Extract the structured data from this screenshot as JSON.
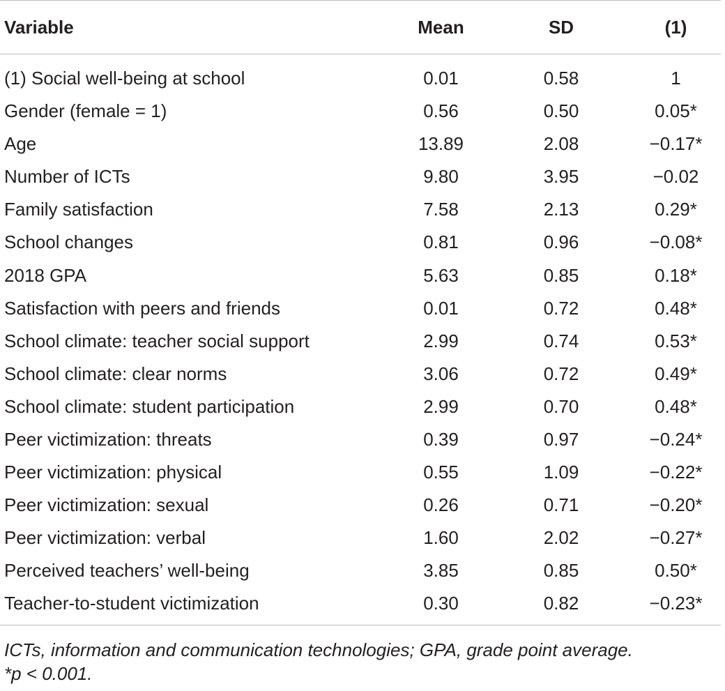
{
  "table": {
    "headers": {
      "variable": "Variable",
      "mean": "Mean",
      "sd": "SD",
      "corr": "(1)"
    },
    "rows": [
      {
        "variable": "(1) Social well-being at school",
        "mean": "0.01",
        "sd": "0.58",
        "corr": "1"
      },
      {
        "variable": "Gender (female = 1)",
        "mean": "0.56",
        "sd": "0.50",
        "corr": "0.05*"
      },
      {
        "variable": "Age",
        "mean": "13.89",
        "sd": "2.08",
        "corr": "−0.17*"
      },
      {
        "variable": "Number of ICTs",
        "mean": "9.80",
        "sd": "3.95",
        "corr": "−0.02"
      },
      {
        "variable": "Family satisfaction",
        "mean": "7.58",
        "sd": "2.13",
        "corr": "0.29*"
      },
      {
        "variable": "School changes",
        "mean": "0.81",
        "sd": "0.96",
        "corr": "−0.08*"
      },
      {
        "variable": "2018 GPA",
        "mean": "5.63",
        "sd": "0.85",
        "corr": "0.18*"
      },
      {
        "variable": "Satisfaction with peers and friends",
        "mean": "0.01",
        "sd": "0.72",
        "corr": "0.48*"
      },
      {
        "variable": "School climate: teacher social support",
        "mean": "2.99",
        "sd": "0.74",
        "corr": "0.53*"
      },
      {
        "variable": "School climate: clear norms",
        "mean": "3.06",
        "sd": "0.72",
        "corr": "0.49*"
      },
      {
        "variable": "School climate: student participation",
        "mean": "2.99",
        "sd": "0.70",
        "corr": "0.48*"
      },
      {
        "variable": "Peer victimization: threats",
        "mean": "0.39",
        "sd": "0.97",
        "corr": "−0.24*"
      },
      {
        "variable": "Peer victimization: physical",
        "mean": "0.55",
        "sd": "1.09",
        "corr": "−0.22*"
      },
      {
        "variable": "Peer victimization: sexual",
        "mean": "0.26",
        "sd": "0.71",
        "corr": "−0.20*"
      },
      {
        "variable": "Peer victimization: verbal",
        "mean": "1.60",
        "sd": "2.02",
        "corr": "−0.27*"
      },
      {
        "variable": "Perceived teachers’ well-being",
        "mean": "3.85",
        "sd": "0.85",
        "corr": "0.50*"
      },
      {
        "variable": "Teacher-to-student victimization",
        "mean": "0.30",
        "sd": "0.82",
        "corr": "−0.23*"
      }
    ]
  },
  "footnote": {
    "line1": "ICTs, information and communication technologies; GPA, grade point average.",
    "line2": "*p < 0.001."
  }
}
